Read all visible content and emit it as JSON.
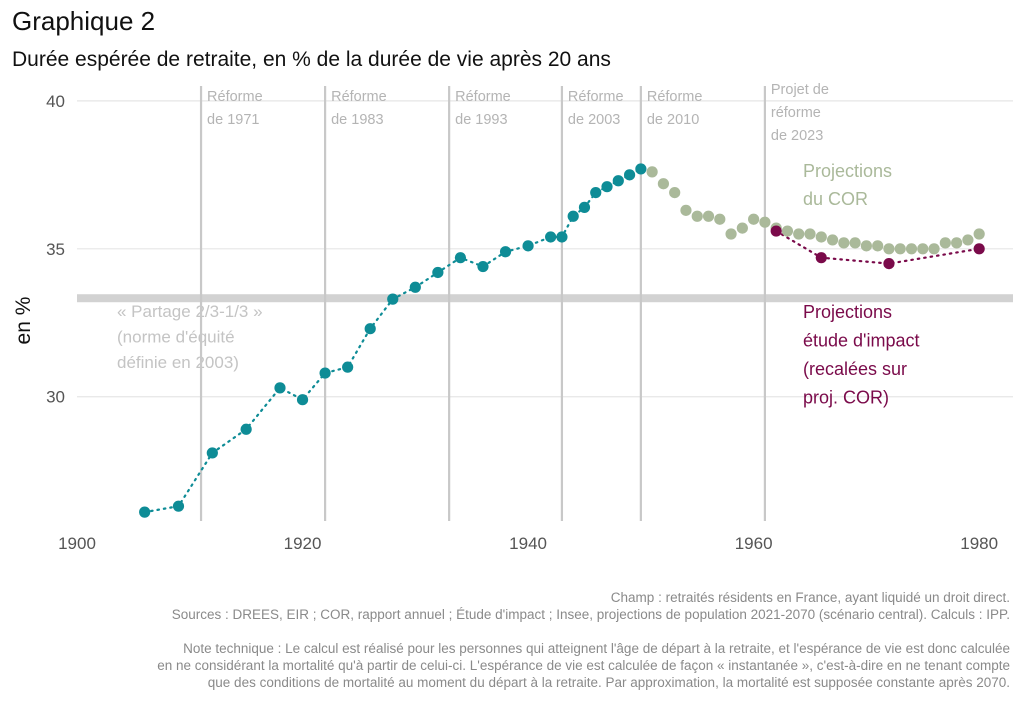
{
  "title": "Graphique 2",
  "subtitle": "Durée espérée de retraite, en % de la durée de vie après 20 ans",
  "colors": {
    "historical": "#0e8c96",
    "cor": "#aab99a",
    "impact": "#7a0a4a",
    "reform_line": "#c8c8c8",
    "reform_text": "#b4b4b4",
    "norm_band": "#d2d2d2",
    "norm_text": "#c4c4c4"
  },
  "chart_data": {
    "type": "scatter",
    "ylabel": "en %",
    "xlabel": "",
    "xlim": [
      1900,
      1983
    ],
    "ylim": [
      25.8,
      40.3
    ],
    "xticks": [
      "1900",
      "1920",
      "1940",
      "1960",
      "1980"
    ],
    "yticks": [
      "30",
      "35",
      "40"
    ],
    "grid": "horizontal",
    "series": [
      {
        "key": "historical",
        "name": "",
        "points": [
          [
            1906,
            26.1
          ],
          [
            1909,
            26.3
          ],
          [
            1912,
            28.1
          ],
          [
            1915,
            28.9
          ],
          [
            1918,
            30.3
          ],
          [
            1920,
            29.9
          ],
          [
            1922,
            30.8
          ],
          [
            1924,
            31.0
          ],
          [
            1926,
            32.3
          ],
          [
            1928,
            33.3
          ],
          [
            1930,
            33.7
          ],
          [
            1932,
            34.2
          ],
          [
            1934,
            34.7
          ],
          [
            1936,
            34.4
          ],
          [
            1938,
            34.9
          ],
          [
            1940,
            35.1
          ],
          [
            1942,
            35.4
          ],
          [
            1943,
            35.4
          ],
          [
            1944,
            36.1
          ],
          [
            1945,
            36.4
          ],
          [
            1946,
            36.9
          ],
          [
            1947,
            37.1
          ],
          [
            1948,
            37.3
          ],
          [
            1949,
            37.5
          ],
          [
            1950,
            37.7
          ]
        ]
      },
      {
        "key": "cor",
        "name": "Projections du COR",
        "points": [
          [
            1951,
            37.6
          ],
          [
            1952,
            37.2
          ],
          [
            1953,
            36.9
          ],
          [
            1954,
            36.3
          ],
          [
            1955,
            36.1
          ],
          [
            1956,
            36.1
          ],
          [
            1957,
            36.0
          ],
          [
            1958,
            35.5
          ],
          [
            1959,
            35.7
          ],
          [
            1960,
            36.0
          ],
          [
            1961,
            35.9
          ],
          [
            1962,
            35.7
          ],
          [
            1963,
            35.6
          ],
          [
            1964,
            35.5
          ],
          [
            1965,
            35.5
          ],
          [
            1966,
            35.4
          ],
          [
            1967,
            35.3
          ],
          [
            1968,
            35.2
          ],
          [
            1969,
            35.2
          ],
          [
            1970,
            35.1
          ],
          [
            1971,
            35.1
          ],
          [
            1972,
            35.0
          ],
          [
            1973,
            35.0
          ],
          [
            1974,
            35.0
          ],
          [
            1975,
            35.0
          ],
          [
            1976,
            35.0
          ],
          [
            1977,
            35.2
          ],
          [
            1978,
            35.2
          ],
          [
            1979,
            35.3
          ],
          [
            1980,
            35.5
          ]
        ]
      },
      {
        "key": "impact",
        "name": "Projections étude d'impact (recalées sur proj. COR)",
        "points": [
          [
            1962,
            35.6
          ],
          [
            1966,
            34.7
          ],
          [
            1972,
            34.5
          ],
          [
            1980,
            35.0
          ]
        ]
      }
    ],
    "reforms": [
      {
        "x": 1911,
        "lines": [
          "Réforme",
          "de 1971"
        ]
      },
      {
        "x": 1922,
        "lines": [
          "Réforme",
          "de 1983"
        ]
      },
      {
        "x": 1933,
        "lines": [
          "Réforme",
          "de 1993"
        ]
      },
      {
        "x": 1943,
        "lines": [
          "Réforme",
          "de 2003"
        ]
      },
      {
        "x": 1950,
        "lines": [
          "Réforme",
          "de 2010"
        ]
      },
      {
        "x": 1961,
        "lines": [
          "Projet de",
          "réforme",
          "de 2023"
        ]
      }
    ],
    "norm": {
      "y": 33.33,
      "label_lines": [
        "« Partage 2/3-1/3 »",
        "(norme d'équité",
        "définie en 2003)"
      ]
    },
    "annotations": {
      "cor_lines": [
        "Projections",
        "du COR"
      ],
      "impact_lines": [
        "Projections",
        "étude d'impact",
        "(recalées sur",
        "proj. COR)"
      ]
    }
  },
  "footer": {
    "champ": "Champ : retraités résidents en France, ayant liquidé un droit direct.",
    "sources": "Sources : DREES, EIR ; COR, rapport annuel ; Étude d'impact ; Insee, projections de population 2021-2070 (scénario central). Calculs : IPP.",
    "note_1": "Note technique : Le calcul est réalisé pour les personnes qui atteignent l'âge de départ à la retraite, et l'espérance de vie est donc calculée",
    "note_2": "en ne considérant la mortalité qu'à partir de celui-ci. L'espérance de vie est calculée de façon « instantanée », c'est-à-dire en ne tenant compte",
    "note_3": "que des conditions de mortalité au moment du départ à la retraite. Par approximation, la mortalité est supposée constante après 2070."
  }
}
